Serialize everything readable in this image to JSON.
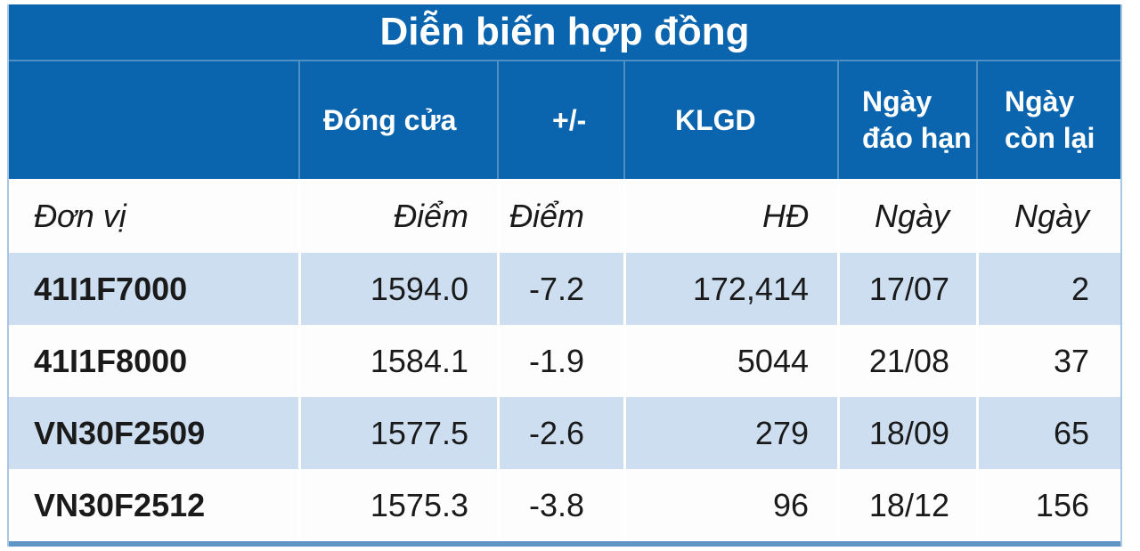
{
  "chart_data": {
    "type": "table",
    "title": "Diễn biến hợp đồng",
    "columns": [
      "",
      "Đóng cửa",
      "+/-",
      "KLGD",
      "Ngày đáo hạn",
      "Ngày còn lại"
    ],
    "units": [
      "Đơn vị",
      "Điểm",
      "Điểm",
      "HĐ",
      "Ngày",
      "Ngày"
    ],
    "rows": [
      [
        "41I1F7000",
        "1594.0",
        "-7.2",
        "172,414",
        "17/07",
        "2"
      ],
      [
        "41I1F8000",
        "1584.1",
        "-1.9",
        "5044",
        "21/08",
        "37"
      ],
      [
        "VN30F2509",
        "1577.5",
        "-2.6",
        "279",
        "18/09",
        "65"
      ],
      [
        "VN30F2512",
        "1575.3",
        "-3.8",
        "96",
        "18/12",
        "156"
      ]
    ],
    "layout": {
      "row_striping": "alternating light-blue / white",
      "header_position": "top"
    }
  },
  "colors": {
    "header_blue": "#0a65ae",
    "row_alt_blue": "#cddef1",
    "row_white": "#fdfdfe",
    "bottom_bar_blue": "#6093c6",
    "side_border_blue": "#a9c7e3",
    "header_text": "#ffffff",
    "body_text": "#1a1a1a"
  }
}
